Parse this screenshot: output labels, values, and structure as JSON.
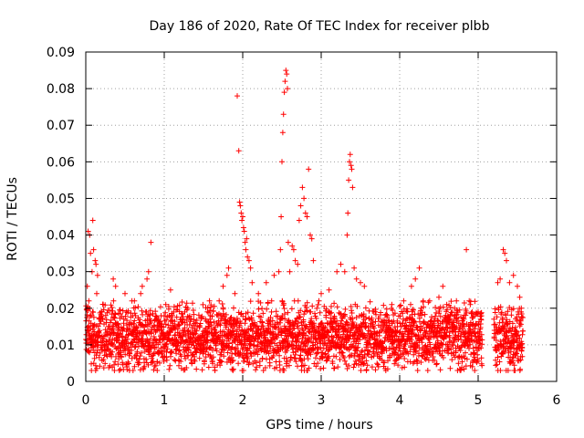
{
  "colors": {
    "points": "#ff0000",
    "axis": "#000000",
    "grid": "#a0a0a0",
    "background": "#ffffff"
  },
  "chart_data": {
    "type": "scatter",
    "title": "Day 186 of 2020, Rate Of TEC Index for receiver plbb",
    "xlabel": "GPS time / hours",
    "ylabel": "ROTI / TECUs",
    "xlim": [
      0,
      6
    ],
    "ylim": [
      0,
      0.09
    ],
    "xticks": [
      0,
      1,
      2,
      3,
      4,
      5,
      6
    ],
    "yticks": [
      0,
      0.01,
      0.02,
      0.03,
      0.04,
      0.05,
      0.06,
      0.07,
      0.08,
      0.09
    ],
    "xtick_labels": [
      "0",
      "1",
      "2",
      "3",
      "4",
      "5",
      "6"
    ],
    "ytick_labels": [
      "0",
      "0.01",
      "0.02",
      "0.03",
      "0.04",
      "0.05",
      "0.06",
      "0.07",
      "0.08",
      "0.09"
    ],
    "grid": true,
    "marker": "+",
    "coverage": [
      [
        0,
        5.05
      ],
      [
        5.2,
        5.57
      ]
    ],
    "series": [
      {
        "name": "ROTI",
        "points": [
          [
            0.02,
            0.026
          ],
          [
            0.03,
            0.041
          ],
          [
            0.05,
            0.04
          ],
          [
            0.06,
            0.035
          ],
          [
            0.08,
            0.03
          ],
          [
            0.09,
            0.044
          ],
          [
            0.1,
            0.036
          ],
          [
            0.12,
            0.033
          ],
          [
            0.13,
            0.032
          ],
          [
            0.15,
            0.029
          ],
          [
            0.02,
            0.02
          ],
          [
            0.04,
            0.022
          ],
          [
            0.07,
            0.018
          ],
          [
            0.14,
            0.024
          ],
          [
            0.2,
            0.019
          ],
          [
            0.35,
            0.028
          ],
          [
            0.38,
            0.026
          ],
          [
            0.5,
            0.024
          ],
          [
            0.62,
            0.022
          ],
          [
            0.7,
            0.024
          ],
          [
            0.72,
            0.026
          ],
          [
            0.78,
            0.028
          ],
          [
            0.8,
            0.03
          ],
          [
            0.83,
            0.038
          ],
          [
            1.02,
            0.021
          ],
          [
            1.08,
            0.025
          ],
          [
            1.3,
            0.02
          ],
          [
            1.55,
            0.019
          ],
          [
            1.7,
            0.022
          ],
          [
            1.75,
            0.026
          ],
          [
            1.8,
            0.029
          ],
          [
            1.82,
            0.031
          ],
          [
            1.9,
            0.024
          ],
          [
            1.93,
            0.078
          ],
          [
            1.95,
            0.063
          ],
          [
            1.96,
            0.049
          ],
          [
            1.97,
            0.048
          ],
          [
            1.98,
            0.046
          ],
          [
            1.99,
            0.044
          ],
          [
            2.0,
            0.045
          ],
          [
            2.01,
            0.042
          ],
          [
            2.02,
            0.041
          ],
          [
            2.03,
            0.038
          ],
          [
            2.04,
            0.036
          ],
          [
            2.05,
            0.039
          ],
          [
            2.06,
            0.034
          ],
          [
            2.08,
            0.033
          ],
          [
            2.1,
            0.031
          ],
          [
            2.12,
            0.027
          ],
          [
            2.2,
            0.024
          ],
          [
            2.3,
            0.027
          ],
          [
            2.4,
            0.029
          ],
          [
            2.46,
            0.03
          ],
          [
            2.48,
            0.036
          ],
          [
            2.49,
            0.045
          ],
          [
            2.5,
            0.06
          ],
          [
            2.51,
            0.068
          ],
          [
            2.52,
            0.073
          ],
          [
            2.53,
            0.079
          ],
          [
            2.54,
            0.082
          ],
          [
            2.55,
            0.085
          ],
          [
            2.56,
            0.084
          ],
          [
            2.57,
            0.08
          ],
          [
            2.58,
            0.038
          ],
          [
            2.6,
            0.03
          ],
          [
            2.63,
            0.037
          ],
          [
            2.65,
            0.036
          ],
          [
            2.67,
            0.033
          ],
          [
            2.7,
            0.032
          ],
          [
            2.72,
            0.044
          ],
          [
            2.74,
            0.048
          ],
          [
            2.76,
            0.053
          ],
          [
            2.78,
            0.05
          ],
          [
            2.8,
            0.046
          ],
          [
            2.82,
            0.045
          ],
          [
            2.84,
            0.058
          ],
          [
            2.86,
            0.04
          ],
          [
            2.88,
            0.039
          ],
          [
            2.9,
            0.033
          ],
          [
            3.0,
            0.024
          ],
          [
            3.1,
            0.025
          ],
          [
            3.2,
            0.03
          ],
          [
            3.25,
            0.032
          ],
          [
            3.3,
            0.03
          ],
          [
            3.33,
            0.04
          ],
          [
            3.34,
            0.046
          ],
          [
            3.35,
            0.055
          ],
          [
            3.36,
            0.06
          ],
          [
            3.37,
            0.062
          ],
          [
            3.38,
            0.059
          ],
          [
            3.39,
            0.058
          ],
          [
            3.4,
            0.053
          ],
          [
            3.42,
            0.031
          ],
          [
            3.45,
            0.028
          ],
          [
            3.5,
            0.027
          ],
          [
            3.55,
            0.026
          ],
          [
            3.9,
            0.021
          ],
          [
            4.1,
            0.019
          ],
          [
            4.15,
            0.026
          ],
          [
            4.2,
            0.028
          ],
          [
            4.25,
            0.031
          ],
          [
            4.3,
            0.022
          ],
          [
            4.5,
            0.023
          ],
          [
            4.55,
            0.026
          ],
          [
            4.6,
            0.021
          ],
          [
            4.7,
            0.02
          ],
          [
            4.85,
            0.036
          ],
          [
            4.9,
            0.021
          ],
          [
            5.0,
            0.019
          ],
          [
            5.25,
            0.027
          ],
          [
            5.28,
            0.028
          ],
          [
            5.32,
            0.036
          ],
          [
            5.34,
            0.035
          ],
          [
            5.36,
            0.033
          ],
          [
            5.4,
            0.027
          ],
          [
            5.45,
            0.029
          ],
          [
            5.5,
            0.026
          ],
          [
            5.53,
            0.023
          ],
          [
            5.55,
            0.02
          ]
        ]
      }
    ],
    "background_band": {
      "description": "dense scatter",
      "y_range": [
        0.003,
        0.022
      ],
      "typical": 0.012
    }
  }
}
